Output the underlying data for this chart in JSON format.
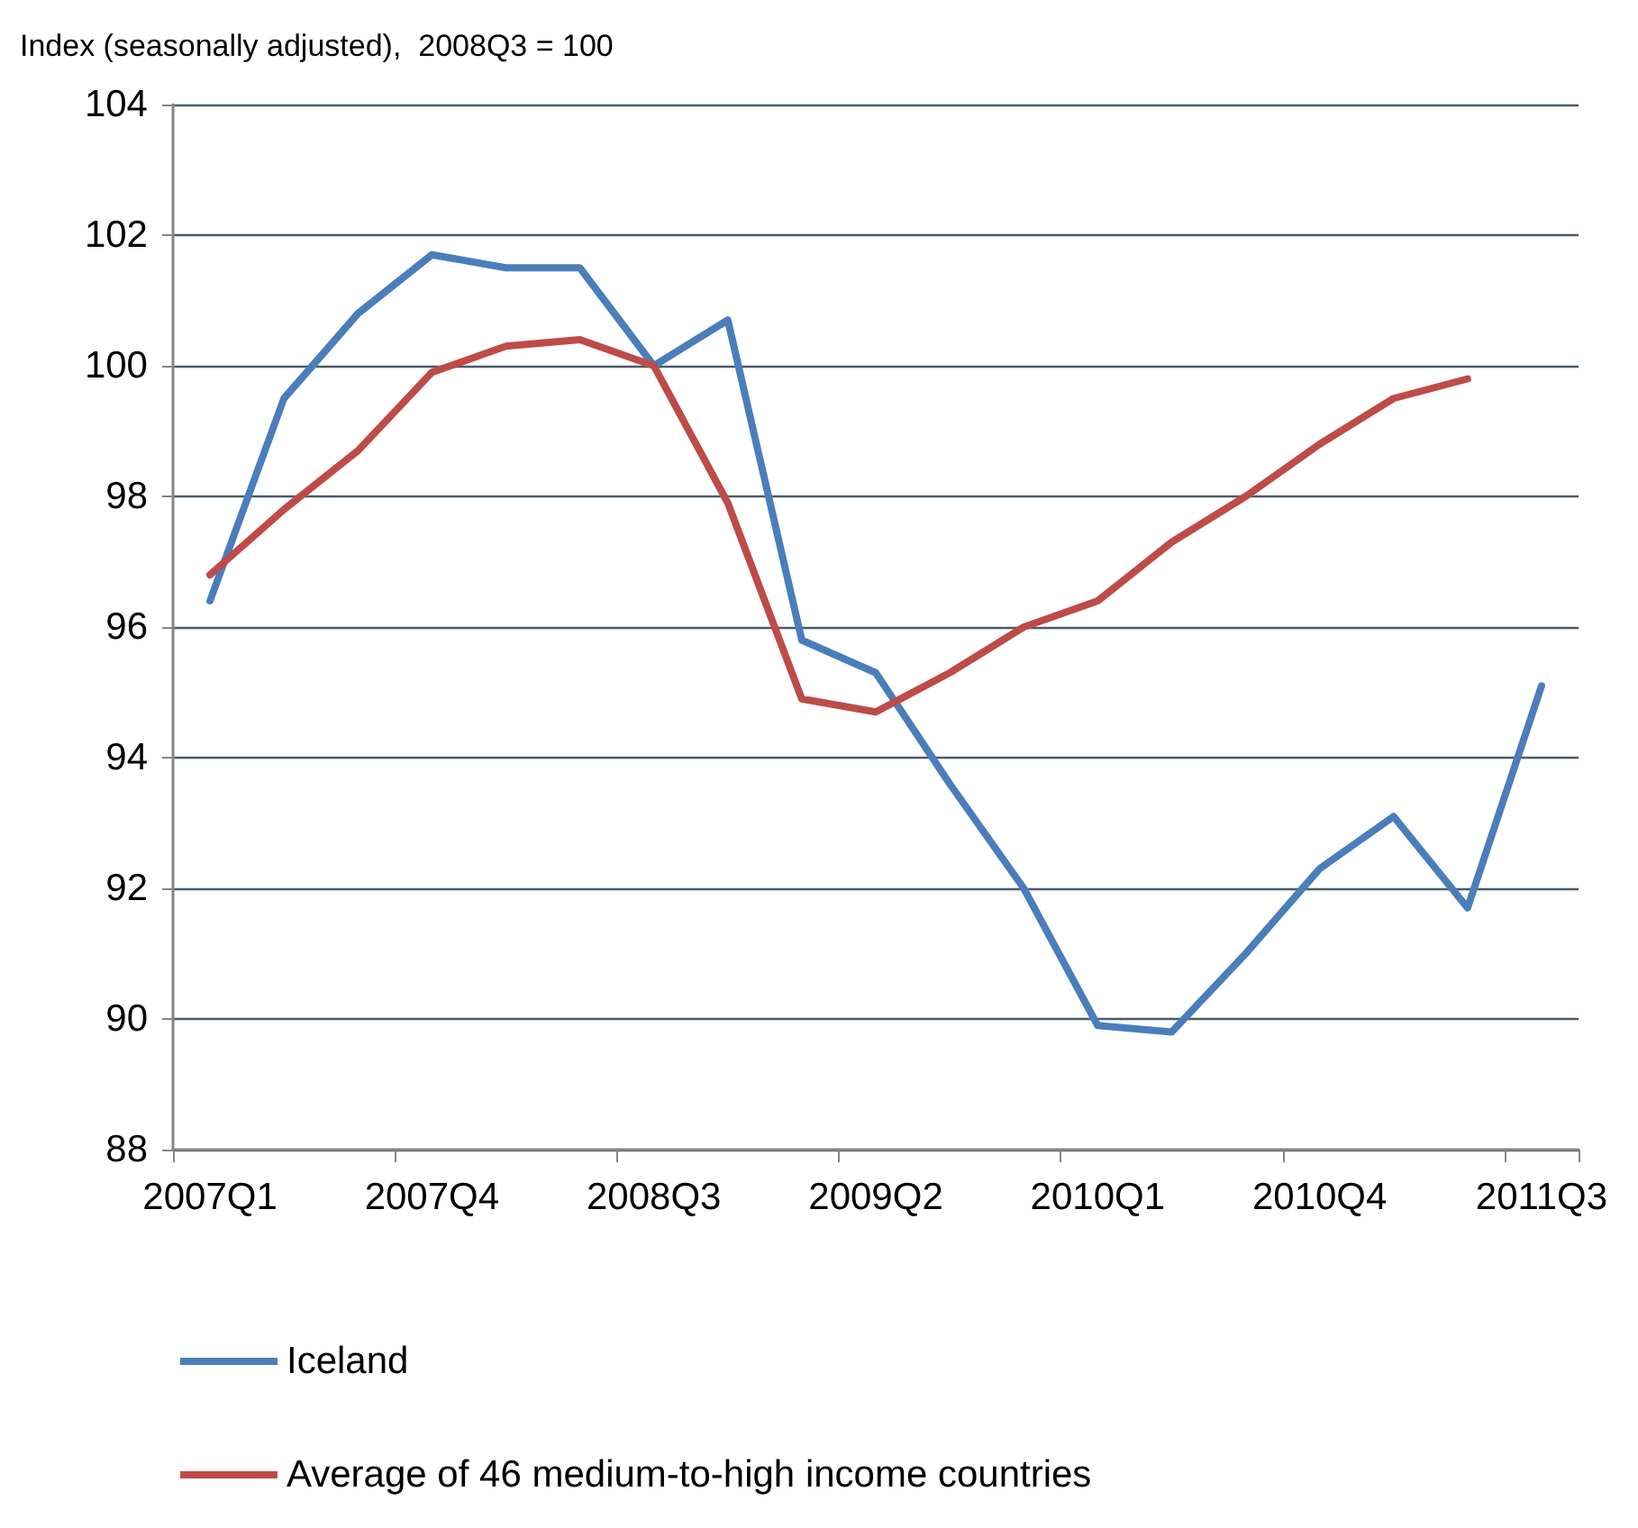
{
  "chart_data": {
    "type": "line",
    "ylabel": "Index (seasonally adjusted),  2008Q3 = 100",
    "categories": [
      "2007Q1",
      null,
      null,
      "2007Q4",
      null,
      null,
      "2008Q3",
      null,
      null,
      "2009Q2",
      null,
      null,
      "2010Q1",
      null,
      null,
      "2010Q4",
      null,
      null,
      "2011Q3"
    ],
    "series": [
      {
        "name": "Iceland",
        "color": "#4a7ebb",
        "values": [
          96.4,
          99.5,
          100.8,
          101.7,
          101.5,
          101.5,
          100.0,
          100.7,
          95.8,
          95.3,
          93.6,
          92.0,
          89.9,
          89.8,
          91.0,
          92.3,
          93.1,
          91.7,
          95.1
        ]
      },
      {
        "name": "Average of 46 medium-to-high income countries",
        "color": "#be4b48",
        "values": [
          96.8,
          97.8,
          98.7,
          99.9,
          100.3,
          100.4,
          100.0,
          97.9,
          94.9,
          94.7,
          95.3,
          96.0,
          96.4,
          97.3,
          98.0,
          98.8,
          99.5,
          99.8,
          null
        ]
      }
    ],
    "ylim": [
      88,
      104
    ],
    "yticks": [
      88,
      90,
      92,
      94,
      96,
      98,
      100,
      102,
      104
    ],
    "grid": "y",
    "legend": "bottom left",
    "marker": "none",
    "line_style": "solid"
  }
}
